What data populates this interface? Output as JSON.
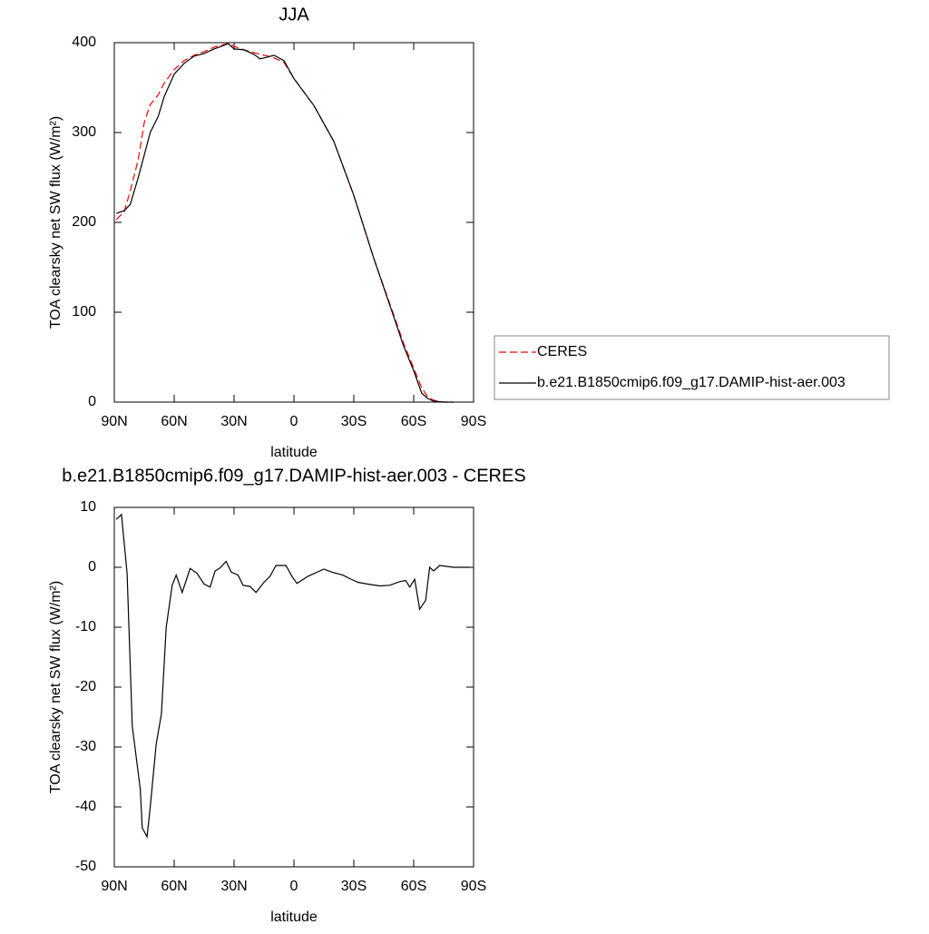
{
  "chart_data": [
    {
      "type": "line",
      "title": "JJA",
      "xlabel": "latitude",
      "ylabel": "TOA clearsky net SW flux (W/m²)",
      "xlim": [
        90,
        -90
      ],
      "ylim": [
        0,
        400
      ],
      "xticks": [
        {
          "value": 90,
          "label": "90N"
        },
        {
          "value": 60,
          "label": "60N"
        },
        {
          "value": 30,
          "label": "30N"
        },
        0,
        {
          "value": -30,
          "label": "30S"
        },
        {
          "value": -60,
          "label": "60S"
        },
        {
          "value": -90,
          "label": "90S"
        }
      ],
      "yticks": [
        0,
        100,
        200,
        300,
        400
      ],
      "legend": "right",
      "x": [
        89,
        85,
        82,
        78,
        75,
        72,
        68,
        65,
        60,
        55,
        50,
        45,
        40,
        35,
        33,
        30,
        25,
        20,
        17,
        13,
        10,
        5,
        0,
        -10,
        -20,
        -30,
        -40,
        -50,
        -55,
        -60,
        -64,
        -67,
        -70,
        -75,
        -80
      ],
      "series": [
        {
          "name": "CERES",
          "color": "#ff0000",
          "dash": true,
          "values": [
            203,
            212,
            235,
            270,
            311,
            331,
            342,
            355,
            370,
            380,
            386,
            390,
            395,
            398,
            399,
            396,
            392,
            389,
            387,
            385,
            383,
            378,
            360,
            330,
            290,
            230,
            160,
            97,
            65,
            38,
            16,
            6,
            2,
            0,
            0
          ]
        },
        {
          "name": "b.e21.B1850cmip6.f09_g17.DAMIP-hist-aer.003",
          "color": "#000000",
          "dash": false,
          "values": [
            210,
            213,
            220,
            250,
            275,
            300,
            318,
            340,
            365,
            377,
            385,
            388,
            393,
            397,
            399,
            393,
            392,
            387,
            382,
            384,
            386,
            380,
            360,
            330,
            290,
            230,
            160,
            95,
            62,
            35,
            10,
            4,
            1,
            0,
            0
          ]
        }
      ]
    },
    {
      "type": "line",
      "title": "b.e21.B1850cmip6.f09_g17.DAMIP-hist-aer.003 - CERES",
      "xlabel": "latitude",
      "ylabel": "TOA clearsky net SW flux (W/m²)",
      "xlim": [
        90,
        -90
      ],
      "ylim": [
        -50,
        10
      ],
      "xticks": [
        {
          "value": 90,
          "label": "90N"
        },
        {
          "value": 60,
          "label": "60N"
        },
        {
          "value": 30,
          "label": "30N"
        },
        0,
        {
          "value": -30,
          "label": "30S"
        },
        {
          "value": -60,
          "label": "60S"
        },
        {
          "value": -90,
          "label": "90S"
        }
      ],
      "yticks": [
        -50,
        -40,
        -30,
        -20,
        -10,
        0,
        10
      ],
      "color": "#000000",
      "x": [
        89,
        86.4,
        83.6,
        81,
        77,
        76,
        73.6,
        72,
        69,
        66.4,
        64,
        61,
        59,
        56,
        52,
        48.6,
        45,
        42,
        39.5,
        37,
        34,
        31.4,
        28,
        25.5,
        22,
        19,
        15,
        12,
        9,
        4,
        1,
        -1.5,
        -7,
        -15,
        -19,
        -24.5,
        -28,
        -32,
        -37,
        -43,
        -48,
        -53,
        -56,
        -58,
        -60.5,
        -63,
        -66,
        -68,
        -70,
        -73,
        -80,
        -88
      ],
      "values": [
        8,
        8.8,
        -1,
        -26.5,
        -37,
        -43.5,
        -45,
        -40,
        -29.5,
        -24.5,
        -10,
        -3,
        -1.3,
        -4.2,
        -0.2,
        -1,
        -2.8,
        -3.3,
        -0.6,
        -0.1,
        1,
        -0.8,
        -1.3,
        -3,
        -3.2,
        -4.2,
        -2.5,
        -1.5,
        0.3,
        0.3,
        -1.5,
        -2.7,
        -1.5,
        -0.3,
        -0.8,
        -1.3,
        -1.9,
        -2.5,
        -2.8,
        -3.1,
        -3,
        -2.4,
        -2.2,
        -3.3,
        -2,
        -7,
        -5.5,
        0,
        -0.6,
        0.3,
        0,
        0
      ]
    }
  ]
}
